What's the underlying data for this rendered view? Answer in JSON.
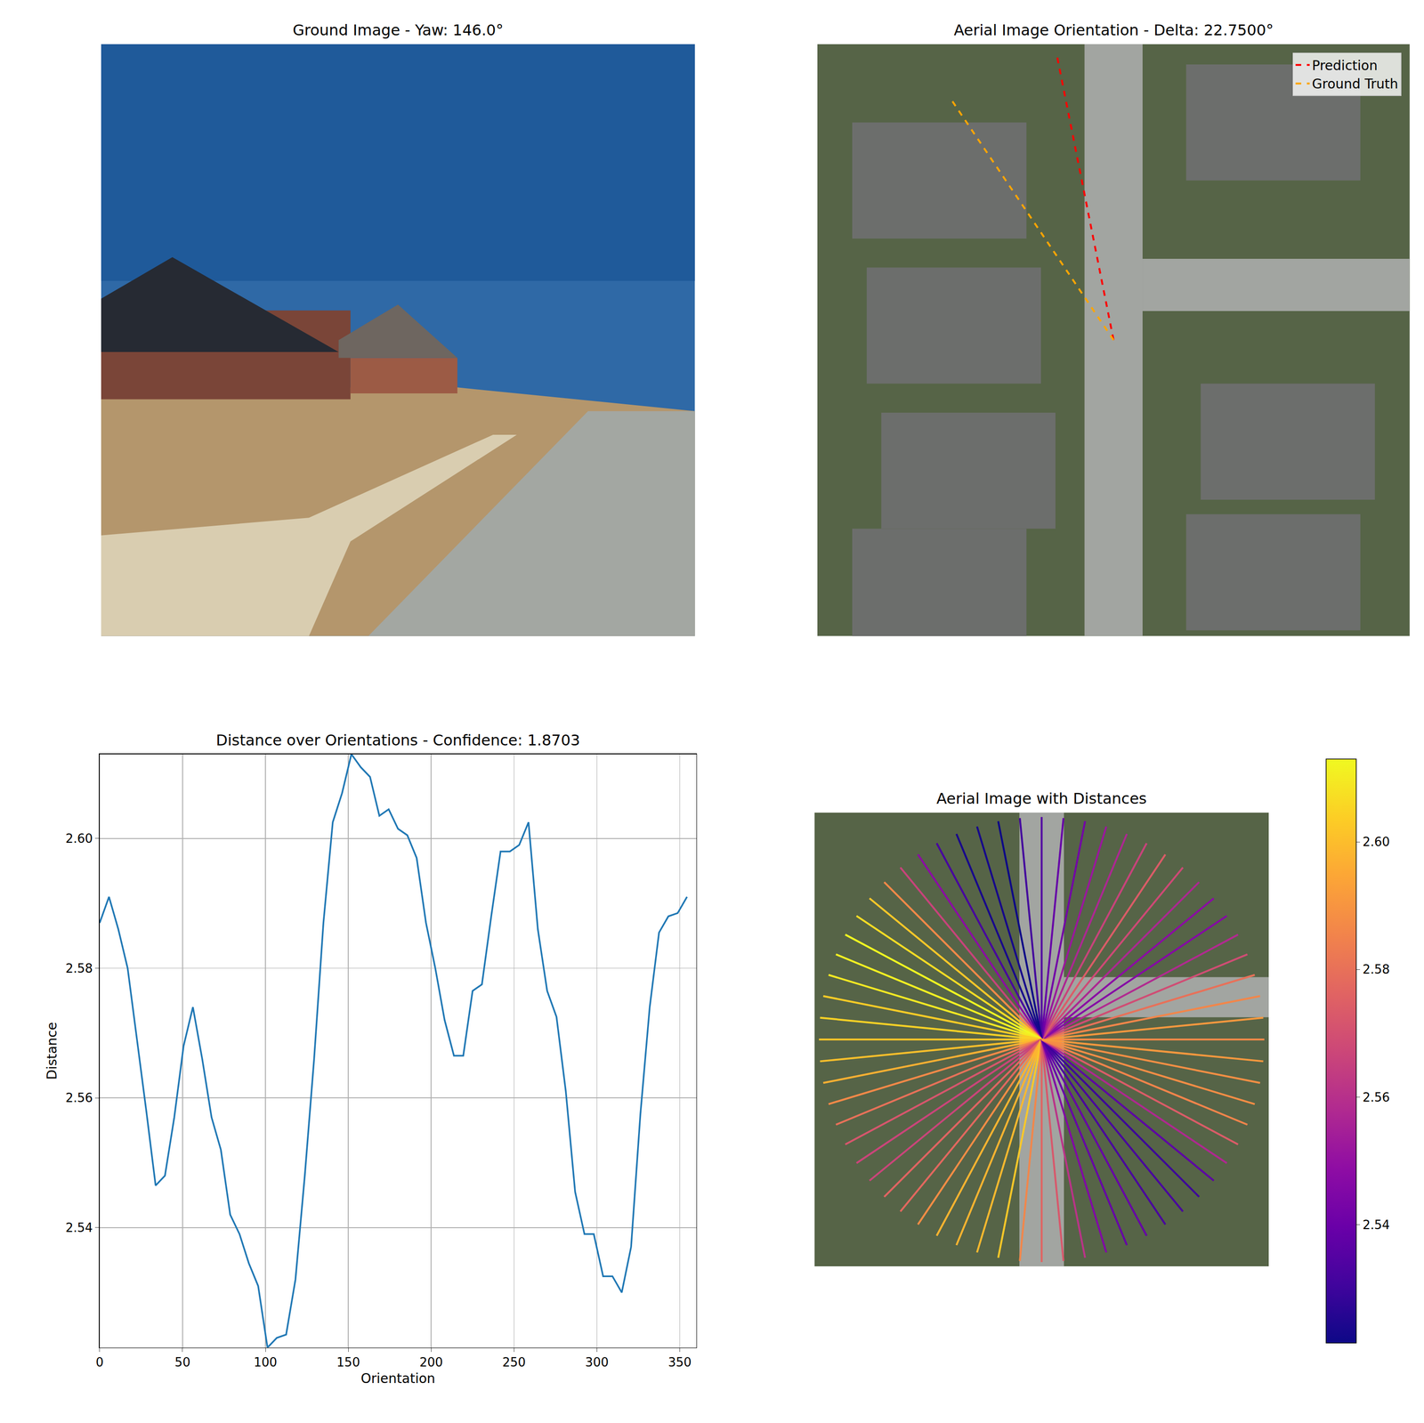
{
  "chart_data": [
    {
      "type": "image",
      "title": "Ground Image - Yaw: 146.0°",
      "tick_labels": false
    },
    {
      "type": "line",
      "title": "Aerial Image Orientation - Delta: 22.7500°",
      "tick_labels": false,
      "legend": "upper right",
      "series": [
        {
          "name": "Prediction",
          "color": "#ff0000",
          "line_style": "dashed",
          "angle": 101.25
        },
        {
          "name": "Ground Truth",
          "color": "#ffa500",
          "line_style": "dashed",
          "angle": 124
        }
      ]
    },
    {
      "type": "line",
      "title": "Distance over Orientations - Confidence: 1.8703",
      "x_label": "Orientation",
      "y_label": "Distance",
      "color": "#1f77b4",
      "grid": true,
      "x": [
        0,
        5.625,
        11.25,
        16.875,
        22.5,
        28.125,
        33.75,
        39.375,
        45,
        50.625,
        56.25,
        61.875,
        67.5,
        73.125,
        78.75,
        84.375,
        90,
        95.625,
        101.25,
        106.875,
        112.5,
        118.125,
        123.75,
        129.375,
        135,
        140.625,
        146.25,
        151.875,
        157.5,
        163.125,
        168.75,
        174.375,
        180,
        185.625,
        191.25,
        196.875,
        202.5,
        208.125,
        213.75,
        219.375,
        225,
        230.625,
        236.25,
        241.875,
        247.5,
        253.125,
        258.75,
        264.375,
        270,
        275.625,
        281.25,
        286.875,
        292.5,
        298.125,
        303.75,
        309.375,
        315,
        320.625,
        326.25,
        331.875,
        337.5,
        343.125,
        348.75,
        354.375
      ],
      "values": [
        2.587,
        2.591,
        2.586,
        2.58,
        2.569,
        2.558,
        2.5465,
        2.548,
        2.557,
        2.568,
        2.574,
        2.566,
        2.557,
        2.552,
        2.542,
        2.539,
        2.5345,
        2.531,
        2.5215,
        2.523,
        2.5235,
        2.532,
        2.548,
        2.566,
        2.587,
        2.6025,
        2.607,
        2.613,
        2.611,
        2.6095,
        2.6035,
        2.6045,
        2.6015,
        2.6005,
        2.597,
        2.587,
        2.58,
        2.572,
        2.5665,
        2.5665,
        2.5765,
        2.5775,
        2.588,
        2.598,
        2.598,
        2.599,
        2.6025,
        2.586,
        2.5765,
        2.5725,
        2.561,
        2.5455,
        2.539,
        2.539,
        2.5325,
        2.5325,
        2.53,
        2.537,
        2.5575,
        2.574,
        2.5855,
        2.588,
        2.5885,
        2.591
      ],
      "xlim": [
        0,
        360
      ],
      "ylim": [
        2.5215,
        2.613
      ],
      "xticks": [
        0,
        50,
        100,
        150,
        200,
        250,
        300,
        350
      ],
      "yticks": [
        2.54,
        2.56,
        2.58,
        {
          "value": 2.6,
          "label": "2.60"
        }
      ]
    },
    {
      "type": "radial",
      "title": "Aerial Image with Distances",
      "tick_labels": false,
      "angles": [
        0,
        5.625,
        11.25,
        16.875,
        22.5,
        28.125,
        33.75,
        39.375,
        45,
        50.625,
        56.25,
        61.875,
        67.5,
        73.125,
        78.75,
        84.375,
        90,
        95.625,
        101.25,
        106.875,
        112.5,
        118.125,
        123.75,
        129.375,
        135,
        140.625,
        146.25,
        151.875,
        157.5,
        163.125,
        168.75,
        174.375,
        180,
        185.625,
        191.25,
        196.875,
        202.5,
        208.125,
        213.75,
        219.375,
        225,
        230.625,
        236.25,
        241.875,
        247.5,
        253.125,
        258.75,
        264.375,
        270,
        275.625,
        281.25,
        286.875,
        292.5,
        298.125,
        303.75,
        309.375,
        315,
        320.625,
        326.25,
        331.875,
        337.5,
        343.125,
        348.75,
        354.375
      ],
      "values": [
        2.587,
        2.591,
        2.586,
        2.58,
        2.569,
        2.558,
        2.5465,
        2.548,
        2.557,
        2.568,
        2.574,
        2.566,
        2.557,
        2.552,
        2.542,
        2.539,
        2.5345,
        2.531,
        2.5215,
        2.523,
        2.5235,
        2.532,
        2.548,
        2.566,
        2.587,
        2.6025,
        2.607,
        2.613,
        2.611,
        2.6095,
        2.6035,
        2.6045,
        2.6015,
        2.6005,
        2.597,
        2.587,
        2.58,
        2.572,
        2.5665,
        2.5665,
        2.5765,
        2.5775,
        2.588,
        2.598,
        2.598,
        2.599,
        2.6025,
        2.586,
        2.5765,
        2.5725,
        2.561,
        2.5455,
        2.539,
        2.539,
        2.5325,
        2.5325,
        2.53,
        2.537,
        2.5575,
        2.574,
        2.5855,
        2.588,
        2.5885,
        2.591
      ],
      "colorbar": {
        "range": [
          2.5215,
          2.613
        ],
        "ticks": [
          2.54,
          2.56,
          2.58,
          {
            "value": 2.6,
            "label": "2.60"
          }
        ]
      }
    }
  ]
}
